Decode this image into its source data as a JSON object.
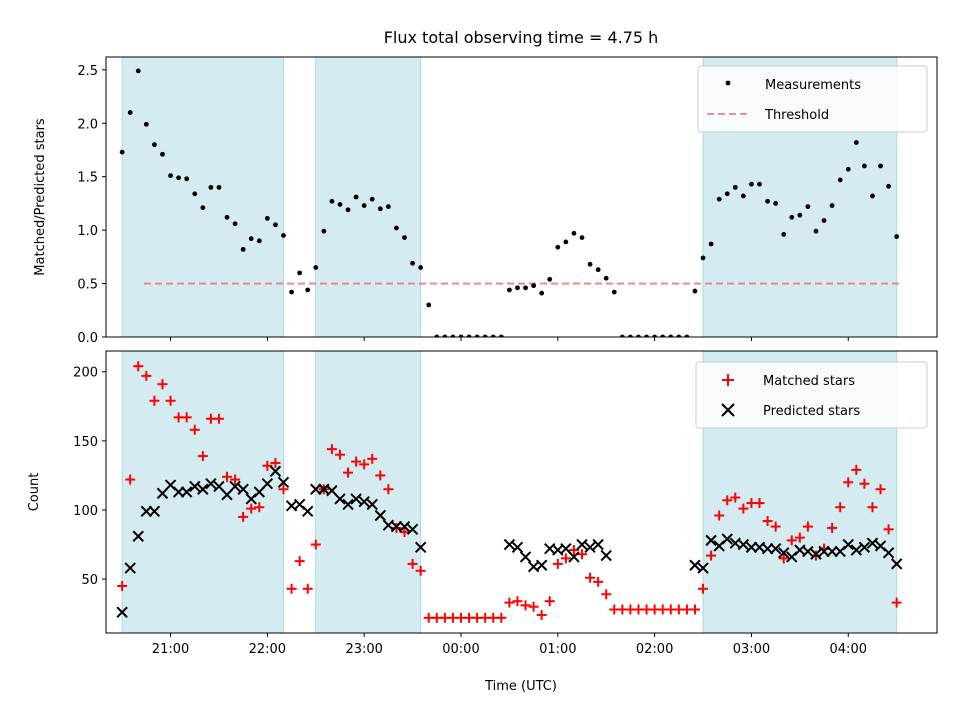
{
  "chart_data": [
    {
      "type": "scatter",
      "title": "Flux total observing time = 4.75 h",
      "ylabel": "Matched/Predicted stars",
      "xlim": [
        "20:20",
        "04:55"
      ],
      "ylim": [
        0,
        2.62
      ],
      "yticks": [
        "0.0",
        "0.5",
        "1.0",
        "1.5",
        "2.0",
        "2.5"
      ],
      "x_unit": "time of day (UTC), HH:MM",
      "shaded_intervals": [
        [
          "20:30",
          "22:10"
        ],
        [
          "22:30",
          "23:35"
        ],
        [
          "02:30",
          "04:30"
        ]
      ],
      "threshold": 0.5,
      "legend_position": "upper right",
      "legend": [
        "Measurements",
        "Threshold"
      ],
      "series": [
        {
          "name": "Measurements",
          "x": [
            "20:30",
            "20:35",
            "20:40",
            "20:45",
            "20:50",
            "20:55",
            "21:00",
            "21:05",
            "21:10",
            "21:15",
            "21:20",
            "21:25",
            "21:30",
            "21:35",
            "21:40",
            "21:45",
            "21:50",
            "21:55",
            "22:00",
            "22:05",
            "22:10",
            "22:15",
            "22:20",
            "22:25",
            "22:30",
            "22:35",
            "22:40",
            "22:45",
            "22:50",
            "22:55",
            "23:00",
            "23:05",
            "23:10",
            "23:15",
            "23:20",
            "23:25",
            "23:30",
            "23:35",
            "23:40",
            "23:45",
            "23:50",
            "23:55",
            "00:00",
            "00:05",
            "00:10",
            "00:15",
            "00:20",
            "00:25",
            "00:30",
            "00:35",
            "00:40",
            "00:45",
            "00:50",
            "00:55",
            "01:00",
            "01:05",
            "01:10",
            "01:15",
            "01:20",
            "01:25",
            "01:30",
            "01:35",
            "01:40",
            "01:45",
            "01:50",
            "01:55",
            "02:00",
            "02:05",
            "02:10",
            "02:15",
            "02:20",
            "02:25",
            "02:30",
            "02:35",
            "02:40",
            "02:45",
            "02:50",
            "02:55",
            "03:00",
            "03:05",
            "03:10",
            "03:15",
            "03:20",
            "03:25",
            "03:30",
            "03:35",
            "03:40",
            "03:45",
            "03:50",
            "03:55",
            "04:00",
            "04:05",
            "04:10",
            "04:15",
            "04:20",
            "04:25",
            "04:30"
          ],
          "y": [
            1.73,
            2.1,
            2.49,
            1.99,
            1.8,
            1.71,
            1.51,
            1.49,
            1.48,
            1.34,
            1.21,
            1.4,
            1.4,
            1.12,
            1.06,
            0.82,
            0.92,
            0.9,
            1.11,
            1.05,
            0.95,
            0.42,
            0.6,
            0.44,
            0.65,
            0.99,
            1.27,
            1.24,
            1.19,
            1.31,
            1.23,
            1.29,
            1.2,
            1.22,
            1.02,
            0.93,
            0.69,
            0.65,
            0.3,
            0.0,
            0.0,
            0.0,
            0.0,
            0.0,
            0.0,
            0.0,
            0.0,
            0.0,
            0.44,
            0.46,
            0.46,
            0.48,
            0.41,
            0.54,
            0.84,
            0.89,
            0.97,
            0.93,
            0.68,
            0.63,
            0.55,
            0.42,
            0.0,
            0.0,
            0.0,
            0.0,
            0.0,
            0.0,
            0.0,
            0.0,
            0.0,
            0.43,
            0.74,
            0.87,
            1.29,
            1.34,
            1.4,
            1.32,
            1.43,
            1.43,
            1.27,
            1.25,
            0.96,
            1.12,
            1.14,
            1.22,
            0.99,
            1.09,
            1.23,
            1.47,
            1.57,
            1.82,
            1.6,
            1.32,
            1.6,
            1.41,
            0.94
          ],
          "color": "#000000",
          "marker": "dot"
        },
        {
          "name": "Threshold",
          "color": "#f08080",
          "style": "dashed"
        }
      ]
    },
    {
      "type": "scatter",
      "xlabel": "Time (UTC)",
      "ylabel": "Count",
      "xlim": [
        "20:20",
        "04:55"
      ],
      "ylim": [
        11,
        215
      ],
      "yticks": [
        "50",
        "100",
        "150",
        "200"
      ],
      "xticks": [
        "21:00",
        "22:00",
        "23:00",
        "00:00",
        "01:00",
        "02:00",
        "03:00",
        "04:00"
      ],
      "x_unit": "time of day (UTC), HH:MM",
      "shaded_intervals": [
        [
          "20:30",
          "22:10"
        ],
        [
          "22:30",
          "23:35"
        ],
        [
          "02:30",
          "04:30"
        ]
      ],
      "legend_position": "upper right",
      "legend": [
        "Matched stars",
        "Predicted stars"
      ],
      "series": [
        {
          "name": "Matched stars",
          "color": "#ff0000",
          "marker": "plus",
          "x": [
            "20:30",
            "20:35",
            "20:40",
            "20:45",
            "20:50",
            "20:55",
            "21:00",
            "21:05",
            "21:10",
            "21:15",
            "21:20",
            "21:25",
            "21:30",
            "21:35",
            "21:40",
            "21:45",
            "21:50",
            "21:55",
            "22:00",
            "22:05",
            "22:10",
            "22:15",
            "22:20",
            "22:25",
            "22:30",
            "22:35",
            "22:40",
            "22:45",
            "22:50",
            "22:55",
            "23:00",
            "23:05",
            "23:10",
            "23:15",
            "23:20",
            "23:25",
            "23:30",
            "23:35",
            "23:40",
            "23:45",
            "23:50",
            "23:55",
            "00:00",
            "00:05",
            "00:10",
            "00:15",
            "00:20",
            "00:25",
            "00:30",
            "00:35",
            "00:40",
            "00:45",
            "00:50",
            "00:55",
            "01:00",
            "01:05",
            "01:10",
            "01:15",
            "01:20",
            "01:25",
            "01:30",
            "01:35",
            "01:40",
            "01:45",
            "01:50",
            "01:55",
            "02:00",
            "02:05",
            "02:10",
            "02:15",
            "02:20",
            "02:25",
            "02:30",
            "02:35",
            "02:40",
            "02:45",
            "02:50",
            "02:55",
            "03:00",
            "03:05",
            "03:10",
            "03:15",
            "03:20",
            "03:25",
            "03:30",
            "03:35",
            "03:40",
            "03:45",
            "03:50",
            "03:55",
            "04:00",
            "04:05",
            "04:10",
            "04:15",
            "04:20",
            "04:25",
            "04:30"
          ],
          "y": [
            45,
            122,
            204,
            197,
            179,
            191,
            179,
            167,
            167,
            158,
            139,
            166,
            166,
            124,
            122,
            95,
            101,
            102,
            132,
            134,
            115,
            43,
            63,
            43,
            75,
            115,
            144,
            140,
            127,
            135,
            133,
            137,
            125,
            115,
            87,
            84,
            61,
            56,
            22,
            22,
            22,
            22,
            22,
            22,
            22,
            22,
            22,
            22,
            33,
            34,
            31,
            30,
            24,
            34,
            61,
            65,
            71,
            68,
            51,
            48,
            39,
            28,
            28,
            28,
            28,
            28,
            28,
            28,
            28,
            28,
            28,
            28,
            43,
            67,
            96,
            107,
            109,
            101,
            105,
            105,
            92,
            88,
            65,
            78,
            80,
            88,
            67,
            72,
            87,
            102,
            120,
            129,
            119,
            102,
            115,
            86,
            33
          ]
        },
        {
          "name": "Predicted stars",
          "color": "#000000",
          "marker": "x",
          "x": [
            "20:30",
            "20:35",
            "20:40",
            "20:45",
            "20:50",
            "20:55",
            "21:00",
            "21:05",
            "21:10",
            "21:15",
            "21:20",
            "21:25",
            "21:30",
            "21:35",
            "21:40",
            "21:45",
            "21:50",
            "21:55",
            "22:00",
            "22:05",
            "22:10",
            "22:15",
            "22:20",
            "22:25",
            "22:30",
            "22:35",
            "22:40",
            "22:45",
            "22:50",
            "22:55",
            "23:00",
            "23:05",
            "23:10",
            "23:15",
            "23:20",
            "23:25",
            "23:30",
            "23:35",
            "23:40",
            "00:30",
            "00:35",
            "00:40",
            "00:45",
            "00:50",
            "00:55",
            "01:00",
            "01:05",
            "01:10",
            "01:15",
            "01:20",
            "01:25",
            "01:30",
            "01:35",
            "02:25",
            "02:30",
            "02:35",
            "02:40",
            "02:45",
            "02:50",
            "02:55",
            "03:00",
            "03:05",
            "03:10",
            "03:15",
            "03:20",
            "03:25",
            "03:30",
            "03:35",
            "03:40",
            "03:45",
            "03:50",
            "03:55",
            "04:00",
            "04:05",
            "04:10",
            "04:15",
            "04:20",
            "04:25",
            "04:30"
          ],
          "y": [
            26,
            58,
            81,
            99,
            99,
            112,
            118,
            113,
            113,
            117,
            115,
            119,
            117,
            111,
            117,
            115,
            108,
            113,
            119,
            128,
            120,
            103,
            104,
            99,
            115,
            115,
            114,
            108,
            104,
            108,
            106,
            104,
            96,
            89,
            88,
            88,
            86,
            73,
            null,
            75,
            73,
            66,
            59,
            60,
            72,
            71,
            72,
            66,
            75,
            73,
            75,
            67,
            null,
            60,
            58,
            78,
            74,
            79,
            76,
            75,
            73,
            73,
            72,
            72,
            69,
            66,
            71,
            70,
            68,
            70,
            70,
            70,
            75,
            71,
            73,
            76,
            74,
            69,
            61
          ]
        }
      ]
    }
  ]
}
